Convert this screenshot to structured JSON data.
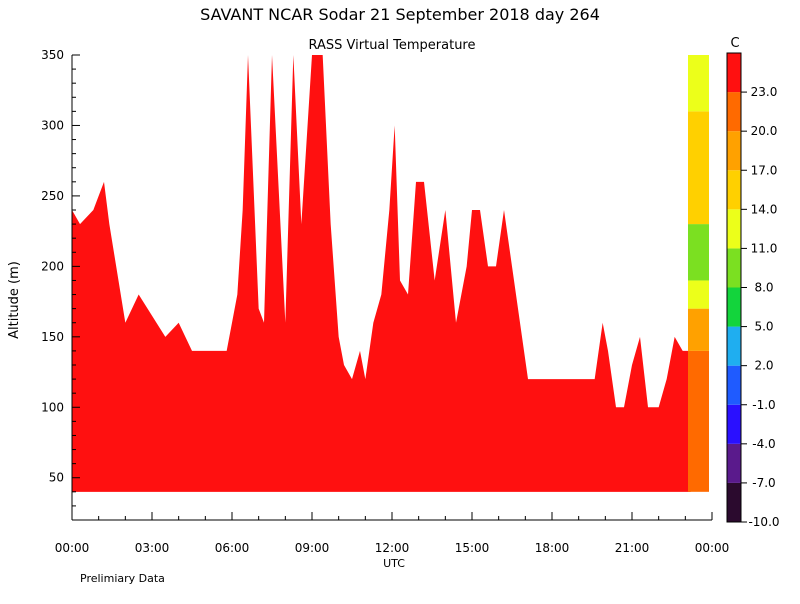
{
  "header": {
    "title": "SAVANT   NCAR Sodar   21 September 2018   day 264"
  },
  "footer": {
    "note": "Prelimiary Data"
  },
  "chart_data": {
    "type": "heatmap",
    "title": "RASS Virtual Temperature",
    "xlabel": "UTC",
    "ylabel": "Altitude (m)",
    "xlim_hours": [
      0,
      24
    ],
    "ylim": [
      20,
      350
    ],
    "x_ticks": [
      {
        "hours": 0,
        "label": "00:00"
      },
      {
        "hours": 3,
        "label": "03:00"
      },
      {
        "hours": 6,
        "label": "06:00"
      },
      {
        "hours": 9,
        "label": "09:00"
      },
      {
        "hours": 12,
        "label": "12:00"
      },
      {
        "hours": 15,
        "label": "15:00"
      },
      {
        "hours": 18,
        "label": "18:00"
      },
      {
        "hours": 21,
        "label": "21:00"
      },
      {
        "hours": 24,
        "label": "00:00"
      }
    ],
    "y_ticks": [
      50,
      100,
      150,
      200,
      250,
      300,
      350
    ],
    "colorbar": {
      "unit": "C",
      "levels": [
        {
          "label": "-10.0",
          "color": "#2b0a2e"
        },
        {
          "label": "-7.0",
          "color": "#5a1a8c"
        },
        {
          "label": "-4.0",
          "color": "#2a10ff"
        },
        {
          "label": "-1.0",
          "color": "#1f5bff"
        },
        {
          "label": "2.0",
          "color": "#1faef0"
        },
        {
          "label": "5.0",
          "color": "#13d43c"
        },
        {
          "label": "8.0",
          "color": "#7be021"
        },
        {
          "label": "11.0",
          "color": "#ecff1a"
        },
        {
          "label": "14.0",
          "color": "#ffd000"
        },
        {
          "label": "17.0",
          "color": "#ffa100"
        },
        {
          "label": "20.0",
          "color": "#ff6a00"
        },
        {
          "label": "23.0",
          "color": "#ff1010"
        }
      ]
    },
    "red_coverage_top_altitude": {
      "hours": [
        0.0,
        0.3,
        0.8,
        1.0,
        1.2,
        1.4,
        2.0,
        2.5,
        3.5,
        4.0,
        4.5,
        5.0,
        5.5,
        5.8,
        6.0,
        6.2,
        6.4,
        6.6,
        7.0,
        7.2,
        7.5,
        8.0,
        8.3,
        8.6,
        9.0,
        9.4,
        9.7,
        10.0,
        10.2,
        10.5,
        10.8,
        11.0,
        11.3,
        11.6,
        11.9,
        12.1,
        12.3,
        12.6,
        12.9,
        13.2,
        13.6,
        14.0,
        14.4,
        14.8,
        15.0,
        15.3,
        15.6,
        15.9,
        16.2,
        16.5,
        16.8,
        17.1,
        17.5,
        18.0,
        19.0,
        19.6,
        19.9,
        20.1,
        20.4,
        20.7,
        21.0,
        21.3,
        21.6,
        22.0,
        22.3,
        22.6,
        22.9,
        23.2
      ],
      "altitude": [
        240,
        230,
        240,
        250,
        260,
        230,
        160,
        180,
        150,
        160,
        140,
        140,
        140,
        140,
        160,
        180,
        240,
        350,
        170,
        160,
        350,
        160,
        350,
        230,
        350,
        350,
        230,
        150,
        130,
        120,
        140,
        120,
        160,
        180,
        240,
        300,
        190,
        180,
        260,
        260,
        190,
        240,
        160,
        200,
        240,
        240,
        200,
        200,
        240,
        200,
        160,
        120,
        120,
        120,
        120,
        120,
        160,
        140,
        100,
        100,
        130,
        150,
        100,
        100,
        120,
        150,
        140,
        140
      ]
    },
    "right_column_bands": {
      "hours_range": [
        23.1,
        24.0
      ],
      "bands": [
        {
          "from": 40,
          "to": 140,
          "level": "20.0"
        },
        {
          "from": 140,
          "to": 170,
          "level": "17.0"
        },
        {
          "from": 170,
          "to": 190,
          "level": "11.0"
        },
        {
          "from": 190,
          "to": 230,
          "level": "8.0"
        },
        {
          "from": 230,
          "to": 310,
          "level": "14.0"
        },
        {
          "from": 310,
          "to": 350,
          "level": "11.0"
        }
      ]
    },
    "grid": false,
    "legend": "colorbar-right"
  }
}
